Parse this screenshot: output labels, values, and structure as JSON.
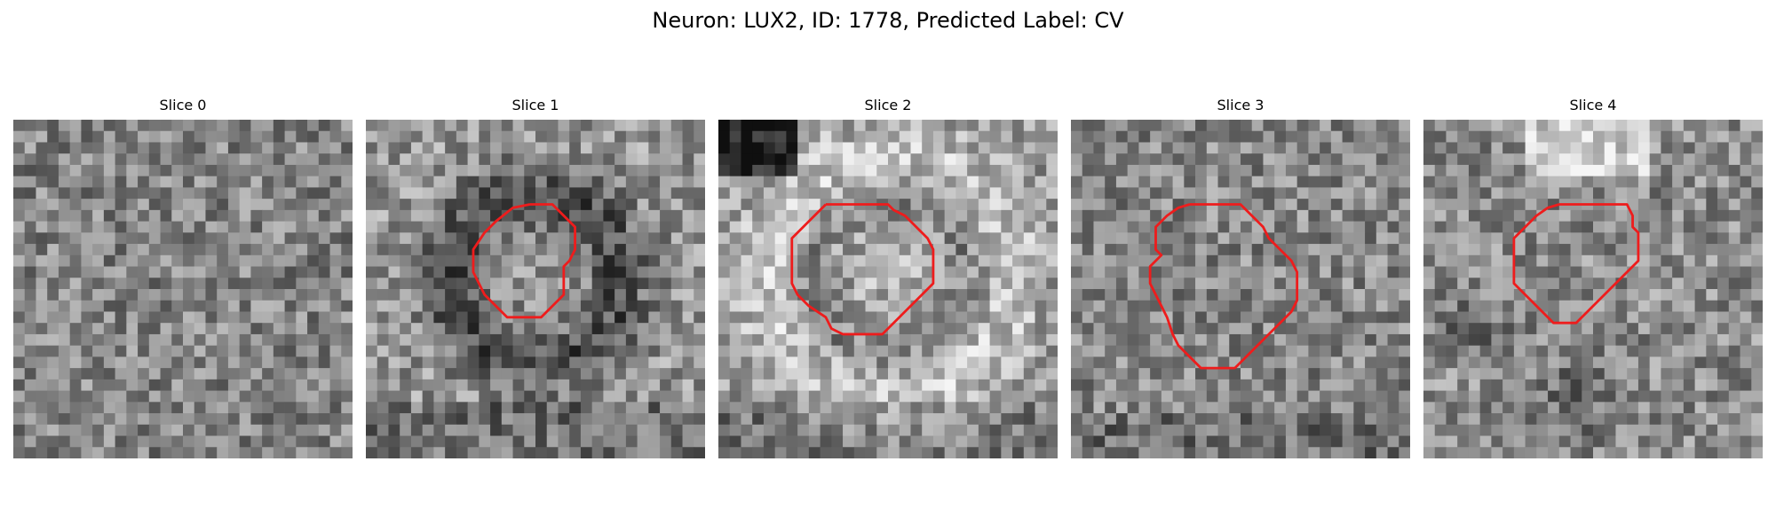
{
  "title": "Neuron: LUX2, ID: 1778, Predicted Label: CV",
  "contour_color": "#ee1c1c",
  "panels": [
    {
      "title": "Slice 0",
      "seed": 11,
      "pattern": "diffuse",
      "contour": []
    },
    {
      "title": "Slice 1",
      "seed": 23,
      "pattern": "dark-ring",
      "contour": [
        [
          14.5,
          7.5
        ],
        [
          16.5,
          7.5
        ],
        [
          17.5,
          8.5
        ],
        [
          18.5,
          9.5
        ],
        [
          18.5,
          11.5
        ],
        [
          18.0,
          12.5
        ],
        [
          17.5,
          13.0
        ],
        [
          17.5,
          15.5
        ],
        [
          16.5,
          16.5
        ],
        [
          15.5,
          17.5
        ],
        [
          12.5,
          17.5
        ],
        [
          11.5,
          16.5
        ],
        [
          10.5,
          15.5
        ],
        [
          10.0,
          14.5
        ],
        [
          9.5,
          13.5
        ],
        [
          9.5,
          11.5
        ],
        [
          10.5,
          10.0
        ],
        [
          11.5,
          9.0
        ],
        [
          13.0,
          7.8
        ],
        [
          14.5,
          7.5
        ]
      ]
    },
    {
      "title": "Slice 2",
      "seed": 37,
      "pattern": "bright-ring",
      "contour": [
        [
          9.5,
          7.5
        ],
        [
          15.0,
          7.5
        ],
        [
          15.5,
          8.0
        ],
        [
          16.5,
          8.5
        ],
        [
          17.5,
          9.5
        ],
        [
          18.5,
          10.5
        ],
        [
          19.0,
          11.5
        ],
        [
          19.0,
          14.5
        ],
        [
          18.5,
          15.0
        ],
        [
          17.0,
          16.5
        ],
        [
          16.0,
          17.5
        ],
        [
          14.5,
          19.0
        ],
        [
          11.0,
          19.0
        ],
        [
          10.0,
          18.5
        ],
        [
          9.5,
          17.5
        ],
        [
          8.0,
          16.5
        ],
        [
          7.0,
          15.5
        ],
        [
          6.5,
          14.5
        ],
        [
          6.5,
          10.5
        ],
        [
          7.5,
          9.5
        ],
        [
          8.5,
          8.5
        ],
        [
          9.5,
          7.5
        ]
      ]
    },
    {
      "title": "Slice 3",
      "seed": 53,
      "pattern": "noisy",
      "contour": [
        [
          10.5,
          7.5
        ],
        [
          15.0,
          7.5
        ],
        [
          15.5,
          8.0
        ],
        [
          16.0,
          8.5
        ],
        [
          17.0,
          9.5
        ],
        [
          17.5,
          10.5
        ],
        [
          18.5,
          11.5
        ],
        [
          19.5,
          12.5
        ],
        [
          20.0,
          13.5
        ],
        [
          20.0,
          16.0
        ],
        [
          19.5,
          17.0
        ],
        [
          18.5,
          18.0
        ],
        [
          17.5,
          19.0
        ],
        [
          16.5,
          20.0
        ],
        [
          15.5,
          21.0
        ],
        [
          14.5,
          22.0
        ],
        [
          11.5,
          22.0
        ],
        [
          10.5,
          21.0
        ],
        [
          9.5,
          20.0
        ],
        [
          9.0,
          19.0
        ],
        [
          8.5,
          17.5
        ],
        [
          8.0,
          16.5
        ],
        [
          7.5,
          15.5
        ],
        [
          7.0,
          14.5
        ],
        [
          7.0,
          13.0
        ],
        [
          8.0,
          12.0
        ],
        [
          7.5,
          11.5
        ],
        [
          7.5,
          9.5
        ],
        [
          8.5,
          8.5
        ],
        [
          9.5,
          7.8
        ],
        [
          10.5,
          7.5
        ]
      ]
    },
    {
      "title": "Slice 4",
      "seed": 71,
      "pattern": "bright-top",
      "contour": [
        [
          12.0,
          7.5
        ],
        [
          18.0,
          7.5
        ],
        [
          18.5,
          8.5
        ],
        [
          18.5,
          9.5
        ],
        [
          19.0,
          10.0
        ],
        [
          19.0,
          12.5
        ],
        [
          18.5,
          13.0
        ],
        [
          17.5,
          14.0
        ],
        [
          16.5,
          15.0
        ],
        [
          15.5,
          16.0
        ],
        [
          14.5,
          17.0
        ],
        [
          13.5,
          18.0
        ],
        [
          11.5,
          18.0
        ],
        [
          10.5,
          17.0
        ],
        [
          9.5,
          16.0
        ],
        [
          8.5,
          15.0
        ],
        [
          8.0,
          14.5
        ],
        [
          8.0,
          10.5
        ],
        [
          9.0,
          9.5
        ],
        [
          10.0,
          8.5
        ],
        [
          11.0,
          7.8
        ],
        [
          12.0,
          7.5
        ]
      ]
    }
  ]
}
